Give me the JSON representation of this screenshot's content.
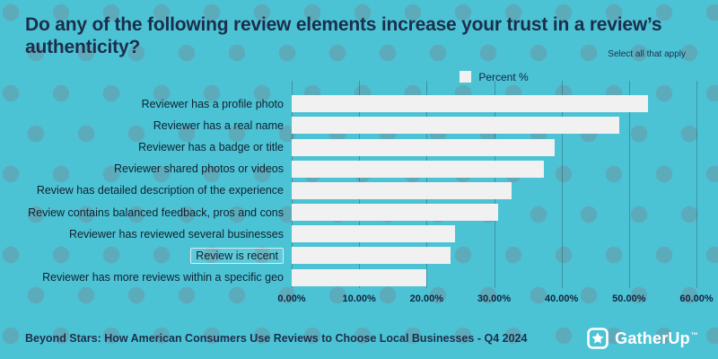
{
  "header": {
    "title": "Do any of the following review elements increase your trust in a review’s authenticity?",
    "note": "Select all that apply"
  },
  "legend": {
    "label": "Percent %"
  },
  "chart_data": {
    "type": "bar",
    "orientation": "horizontal",
    "title": "Do any of the following review elements increase your trust in a review’s authenticity?",
    "series_name": "Percent %",
    "categories": [
      "Reviewer has a profile photo",
      "Reviewer has a real name",
      "Reviewer has a badge or title",
      "Reviewer shared photos or videos",
      "Review has detailed description of the experience",
      "Review contains balanced feedback, pros and cons",
      "Reviewer has reviewed several businesses",
      "Review is recent",
      "Reviewer has more reviews within a specific geo"
    ],
    "values": [
      52.8,
      48.6,
      39.0,
      37.4,
      32.6,
      30.6,
      24.2,
      23.6,
      20.0
    ],
    "xlim": [
      0,
      60
    ],
    "x_ticks": [
      "0.00%",
      "10.00%",
      "20.00%",
      "30.00%",
      "40.00%",
      "50.00%",
      "60.00%"
    ],
    "xlabel": "",
    "ylabel": "",
    "grid": "vertical",
    "legend_position": "top-center",
    "bar_color": "#f1f1f1",
    "highlight_index": 7
  },
  "footer": {
    "caption": "Beyond Stars: How American Consumers Use Reviews to Choose Local Businesses - Q4 2024"
  },
  "logo": {
    "text": "GatherUp",
    "tm": "™",
    "icon": "star-in-rounded-square"
  },
  "colors": {
    "background": "#4cc3d5",
    "title": "#1c2e4a",
    "bar": "#f1f1f1"
  }
}
